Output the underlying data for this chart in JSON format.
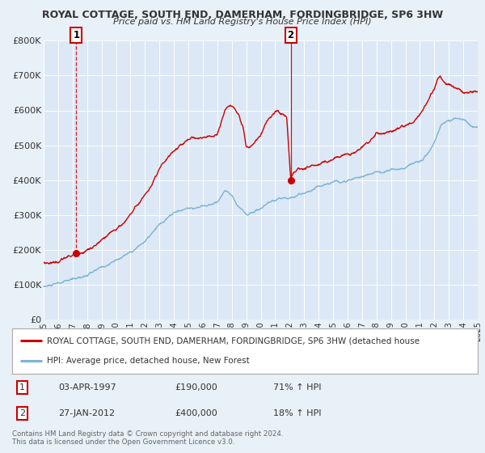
{
  "title": "ROYAL COTTAGE, SOUTH END, DAMERHAM, FORDINGBRIDGE, SP6 3HW",
  "subtitle": "Price paid vs. HM Land Registry's House Price Index (HPI)",
  "bg_color": "#e8f0f8",
  "plot_bg_color": "#dce8f5",
  "grid_color": "#ffffff",
  "ylim": [
    0,
    800000
  ],
  "xlim_start": 1995,
  "xlim_end": 2025,
  "yticks": [
    0,
    100000,
    200000,
    300000,
    400000,
    500000,
    600000,
    700000,
    800000
  ],
  "ytick_labels": [
    "£0",
    "£100K",
    "£200K",
    "£300K",
    "£400K",
    "£500K",
    "£600K",
    "£700K",
    "£800K"
  ],
  "xticks": [
    1995,
    1996,
    1997,
    1998,
    1999,
    2000,
    2001,
    2002,
    2003,
    2004,
    2005,
    2006,
    2007,
    2008,
    2009,
    2010,
    2011,
    2012,
    2013,
    2014,
    2015,
    2016,
    2017,
    2018,
    2019,
    2020,
    2021,
    2022,
    2023,
    2024,
    2025
  ],
  "sale1_x": 1997.25,
  "sale1_y": 190000,
  "sale1_label": "1",
  "sale1_date": "03-APR-1997",
  "sale1_price": "£190,000",
  "sale1_hpi": "71% ↑ HPI",
  "sale2_x": 2012.07,
  "sale2_y": 400000,
  "sale2_label": "2",
  "sale2_date": "27-JAN-2012",
  "sale2_price": "£400,000",
  "sale2_hpi": "18% ↑ HPI",
  "red_line_color": "#cc0000",
  "blue_line_color": "#7ab3d4",
  "marker_color": "#cc0000",
  "vline1_color": "#cc0000",
  "vline2_color": "#cc0000",
  "legend_label_red": "ROYAL COTTAGE, SOUTH END, DAMERHAM, FORDINGBRIDGE, SP6 3HW (detached house",
  "legend_label_blue": "HPI: Average price, detached house, New Forest",
  "footer1": "Contains HM Land Registry data © Crown copyright and database right 2024.",
  "footer2": "This data is licensed under the Open Government Licence v3.0."
}
